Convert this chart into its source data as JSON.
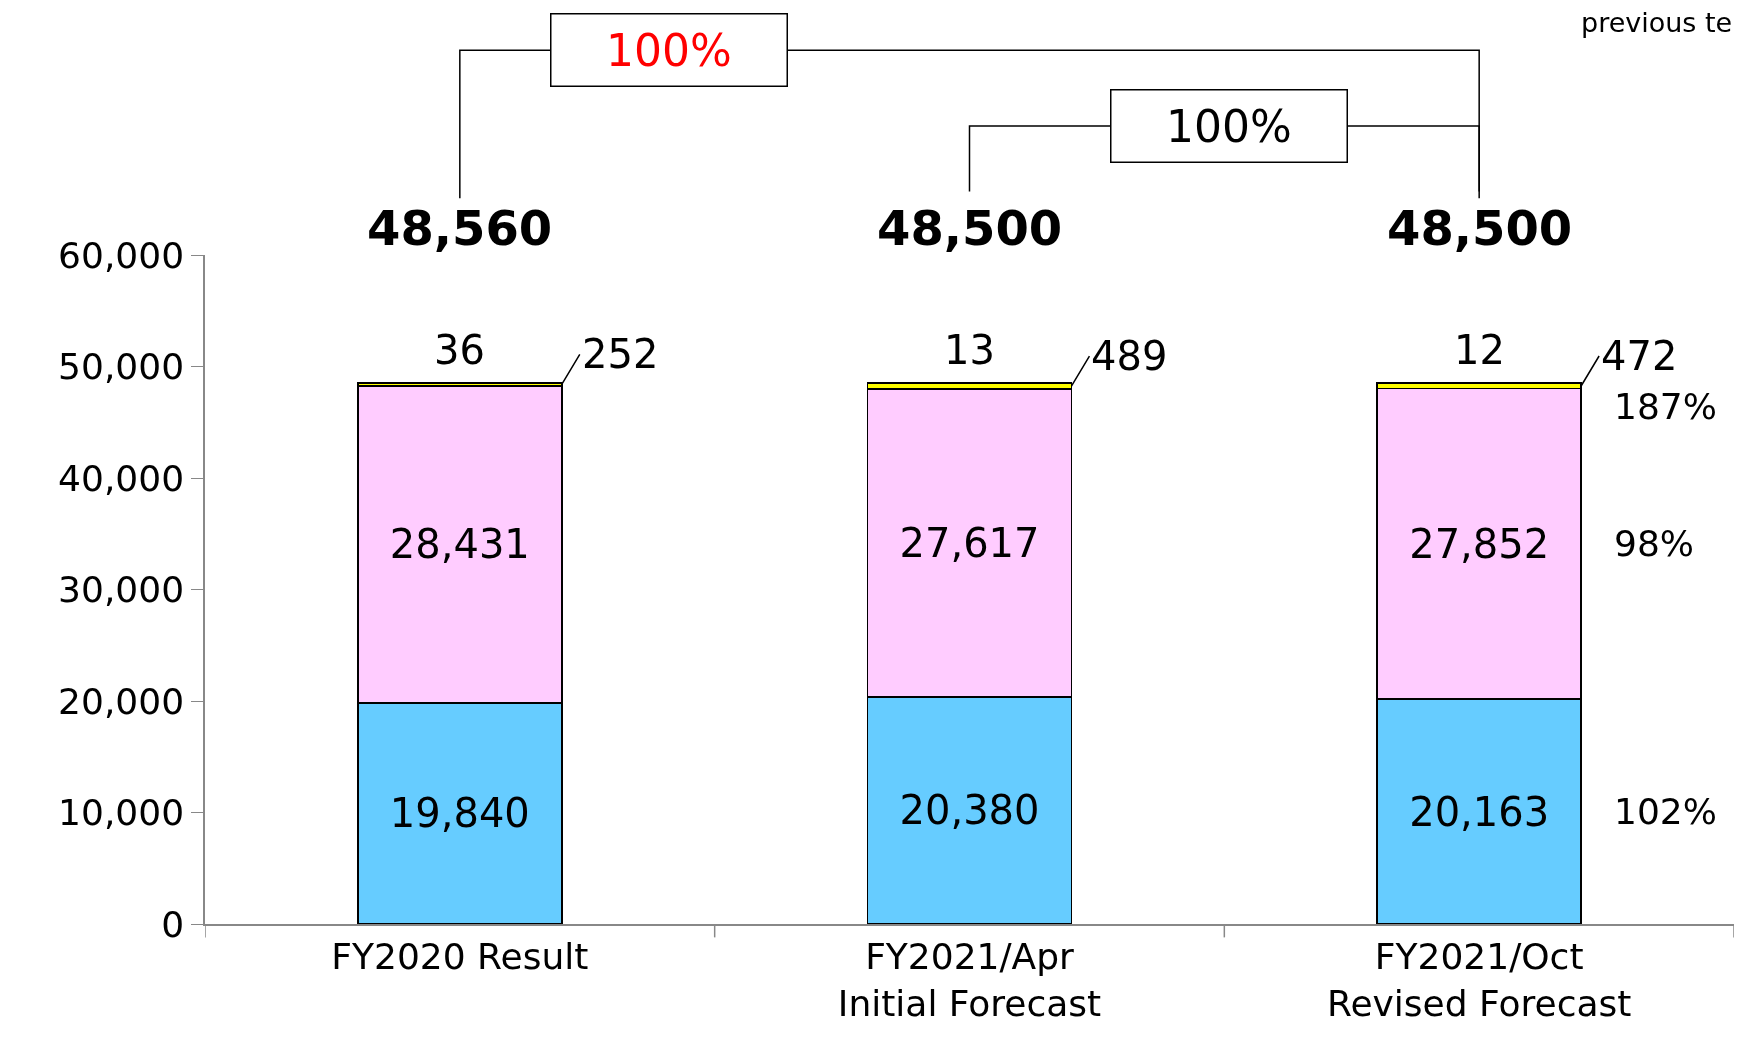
{
  "chart_data": {
    "type": "bar",
    "stacked": true,
    "categories": [
      "FY2020 Result",
      "FY2021/Apr\nInitial Forecast",
      "FY2021/Oct\nRevised Forecast"
    ],
    "series": [
      {
        "color": "#66ccff",
        "values": [
          19840,
          20380,
          20163
        ],
        "value_labels": [
          "19,840",
          "20,380",
          "20,163"
        ]
      },
      {
        "color": "#ffccff",
        "values": [
          28431,
          27617,
          27852
        ],
        "value_labels": [
          "28,431",
          "27,617",
          "27,852"
        ]
      },
      {
        "color": "#ffff00",
        "values": [
          252,
          489,
          472
        ],
        "value_labels": [
          "252",
          "489",
          "472"
        ]
      },
      {
        "color": "#ffffff",
        "values": [
          36,
          13,
          12
        ],
        "value_labels": [
          "36",
          "13",
          "12"
        ]
      }
    ],
    "ylim": [
      0,
      60000
    ],
    "yticks": [
      {
        "value": 0,
        "label": "0"
      },
      {
        "value": 10000,
        "label": "10,000"
      },
      {
        "value": 20000,
        "label": "20,000"
      },
      {
        "value": 30000,
        "label": "30,000"
      },
      {
        "value": 40000,
        "label": "40,000"
      },
      {
        "value": 50000,
        "label": "50,000"
      },
      {
        "value": 60000,
        "label": "60,000"
      }
    ],
    "totals": [
      "48,560",
      "48,500",
      "48,500"
    ],
    "annotations": [
      "previous te",
      "100%",
      "100%",
      "187%",
      "98%",
      "102%"
    ]
  }
}
